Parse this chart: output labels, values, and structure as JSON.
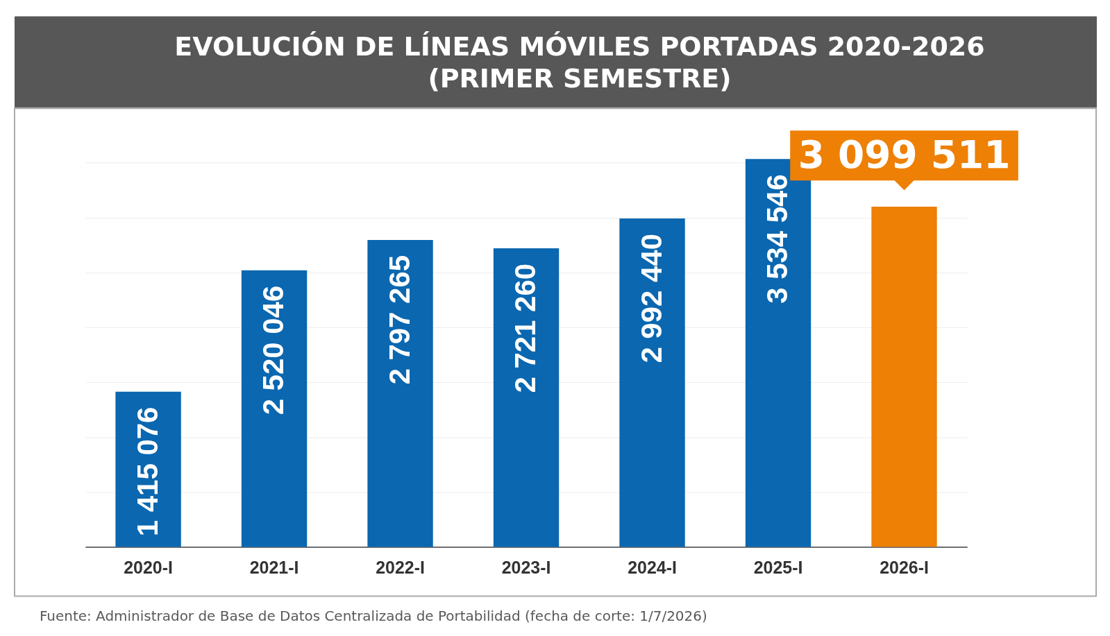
{
  "chart_data": {
    "type": "bar",
    "title": "EVOLUCIÓN DE LÍNEAS MÓVILES PORTADAS 2020-2026\n(PRIMER SEMESTRE)",
    "categories": [
      "2020-I",
      "2021-I",
      "2022-I",
      "2023-I",
      "2024-I",
      "2025-I",
      "2026-I"
    ],
    "values": [
      1415076,
      2520046,
      2797265,
      2721260,
      2992440,
      3534546,
      3099511
    ],
    "colors": [
      "#0a67b0",
      "#0a67b0",
      "#0a67b0",
      "#0a67b0",
      "#0a67b0",
      "#0a67b0",
      "#ee8005"
    ],
    "value_labels": [
      "1 415 076",
      "2 520 046",
      "2 797 265",
      "2 721 260",
      "2 992 440",
      "3 534 546",
      null
    ],
    "annotations": [
      {
        "text": "3 099 511",
        "x": "2026-I",
        "y": 3099511
      },
      "Fuente: Administrador de Base de Datos Centralizada de Portabilidad (fecha de corte: 1/7/2026)"
    ],
    "yticks": [
      {
        "value": 0,
        "label": null
      },
      {
        "value": 500000,
        "label": null
      },
      {
        "value": 1000000,
        "label": null
      },
      {
        "value": 1500000,
        "label": null
      },
      {
        "value": 2000000,
        "label": null
      },
      {
        "value": 2500000,
        "label": null
      },
      {
        "value": 3000000,
        "label": null
      },
      {
        "value": 3500000,
        "label": null
      }
    ],
    "grid": "y",
    "tick_labels": "x"
  }
}
